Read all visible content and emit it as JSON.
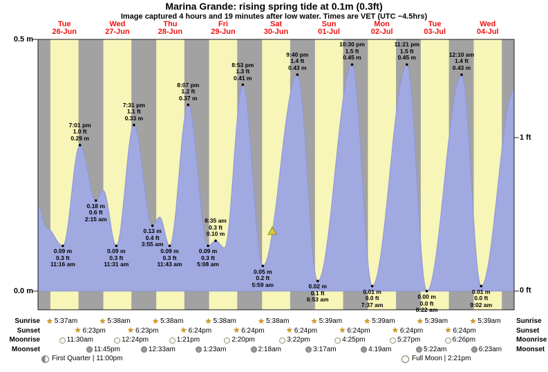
{
  "title": "Marina Grande: rising  spring tide at 0.1m (0.3ft)",
  "subtitle": "Image captured 4 hours and 19 minutes after low water. Times are VET (UTC −4.5hrs)",
  "axis": {
    "left_top": "0.5 m",
    "left_bottom": "0.0 m",
    "right_top": "1 ft",
    "right_bottom": "0 ft"
  },
  "days": [
    {
      "dow": "Tue",
      "date": "26-Jun"
    },
    {
      "dow": "Wed",
      "date": "27-Jun"
    },
    {
      "dow": "Thu",
      "date": "28-Jun"
    },
    {
      "dow": "Fri",
      "date": "29-Jun"
    },
    {
      "dow": "Sat",
      "date": "30-Jun"
    },
    {
      "dow": "Sun",
      "date": "01-Jul"
    },
    {
      "dow": "Mon",
      "date": "02-Jul"
    },
    {
      "dow": "Tue",
      "date": "03-Jul"
    },
    {
      "dow": "Wed",
      "date": "04-Jul"
    }
  ],
  "chart_data": {
    "type": "area",
    "title": "Marina Grande tide height",
    "x_axis": "hours from Tue 26-Jun 00:00 (chart spans 9 days, 0-216 h)",
    "y_unit": "m",
    "ylim_m": [
      0,
      0.5
    ],
    "y_ticks_left_m": [
      0.0,
      0.5
    ],
    "y_ticks_right_ft": [
      0,
      1
    ],
    "grid": false,
    "bands": {
      "meaning": "yellow = daylight, gray = night",
      "sunrise_t": [
        5.62,
        29.63,
        53.63,
        77.63,
        101.63,
        125.65,
        149.65,
        173.65,
        197.65
      ],
      "sunset_t": [
        18.38,
        42.38,
        66.4,
        90.4,
        114.4,
        138.4,
        162.4,
        186.4,
        210.4
      ]
    },
    "extremes": [
      {
        "t": 0.0,
        "h": 0.17
      },
      {
        "t": 4.0,
        "h": 0.125
      },
      {
        "t": 11.27,
        "h": 0.09,
        "kind": "low",
        "lines": [
          "0.09 m",
          "0.3 ft",
          "11:16 am"
        ]
      },
      {
        "t": 19.02,
        "h": 0.29,
        "kind": "high",
        "lines": [
          "7:01 pm",
          "1.0 ft",
          "0.29 m"
        ]
      },
      {
        "t": 26.25,
        "h": 0.18,
        "kind": "low",
        "lines": [
          "0.18 m",
          "0.6 ft",
          "2:15 am"
        ]
      },
      {
        "t": 29.6,
        "h": 0.2
      },
      {
        "t": 35.52,
        "h": 0.09,
        "kind": "low",
        "lines": [
          "0.09 m",
          "0.3 ft",
          "11:31 am"
        ]
      },
      {
        "t": 43.52,
        "h": 0.33,
        "kind": "high",
        "lines": [
          "7:31 pm",
          "1.1 ft",
          "0.33 m"
        ]
      },
      {
        "t": 51.92,
        "h": 0.13,
        "kind": "low",
        "lines": [
          "0.13 m",
          "0.4 ft",
          "3:55 am"
        ]
      },
      {
        "t": 55.2,
        "h": 0.147
      },
      {
        "t": 59.72,
        "h": 0.09,
        "kind": "low",
        "lines": [
          "0.09 m",
          "0.3 ft",
          "11:43 am"
        ]
      },
      {
        "t": 68.12,
        "h": 0.37,
        "kind": "high",
        "lines": [
          "8:07 pm",
          "1.2 ft",
          "0.37 m"
        ]
      },
      {
        "t": 77.13,
        "h": 0.09,
        "kind": "low",
        "lines": [
          "0.09 m",
          "0.3 ft",
          "5:08 am"
        ]
      },
      {
        "t": 80.58,
        "h": 0.1,
        "kind": "high",
        "lines": [
          "8:35 am",
          "0.3 ft",
          "0.10 m"
        ]
      },
      {
        "t": 84.6,
        "h": 0.086
      },
      {
        "t": 92.88,
        "h": 0.41,
        "kind": "high",
        "lines": [
          "8:53 pm",
          "1.3 ft",
          "0.41 m"
        ]
      },
      {
        "t": 101.98,
        "h": 0.05,
        "kind": "low",
        "lines": [
          "0.05 m",
          "0.2 ft",
          "5:59 am"
        ]
      },
      {
        "t": 117.67,
        "h": 0.43,
        "kind": "high",
        "lines": [
          "9:40 pm",
          "1.4 ft",
          "0.43 m"
        ]
      },
      {
        "t": 126.88,
        "h": 0.02,
        "kind": "low",
        "lines": [
          "0.02 m",
          "0.1 ft",
          "6:53 am"
        ]
      },
      {
        "t": 142.5,
        "h": 0.45,
        "kind": "high",
        "lines": [
          "10:30 pm",
          "1.5 ft",
          "0.45 m"
        ]
      },
      {
        "t": 151.62,
        "h": 0.01,
        "kind": "low",
        "lines": [
          "0.01 m",
          "0.0 ft",
          "7:37 am"
        ]
      },
      {
        "t": 167.35,
        "h": 0.45,
        "kind": "high",
        "lines": [
          "11:21 pm",
          "1.5 ft",
          "0.45 m"
        ]
      },
      {
        "t": 176.37,
        "h": 0.0,
        "kind": "low",
        "lines": [
          "0.00 m",
          "0.0 ft",
          "8:22 am"
        ]
      },
      {
        "t": 192.17,
        "h": 0.43,
        "kind": "high",
        "lines": [
          "12:10 am",
          "1.4 ft",
          "0.43 m"
        ]
      },
      {
        "t": 201.03,
        "h": 0.01,
        "kind": "low",
        "lines": [
          "0.01 m",
          "0.0 ft",
          "9:02 am"
        ]
      },
      {
        "t": 216.0,
        "h": 0.4
      }
    ],
    "current_time_marker": {
      "t_hours": 106.3,
      "h_m": 0.118,
      "icon": "current-time-triangle-icon"
    }
  },
  "sun_moon": {
    "rows": [
      {
        "label": "Sunrise",
        "icon": "sun-star-icon",
        "entries": [
          {
            "time": "5:37am",
            "t": 5.62
          },
          {
            "time": "5:38am",
            "t": 29.63
          },
          {
            "time": "5:38am",
            "t": 53.63
          },
          {
            "time": "5:38am",
            "t": 77.63
          },
          {
            "time": "5:38am",
            "t": 101.63
          },
          {
            "time": "5:39am",
            "t": 125.65
          },
          {
            "time": "5:39am",
            "t": 149.65
          },
          {
            "time": "5:39am",
            "t": 173.65
          },
          {
            "time": "5:39am",
            "t": 197.65
          }
        ]
      },
      {
        "label": "Sunset",
        "icon": "sun-star-icon",
        "entries": [
          {
            "time": "6:23pm",
            "t": 18.38
          },
          {
            "time": "6:23pm",
            "t": 42.38
          },
          {
            "time": "6:24pm",
            "t": 66.4
          },
          {
            "time": "6:24pm",
            "t": 90.4
          },
          {
            "time": "6:24pm",
            "t": 114.4
          },
          {
            "time": "6:24pm",
            "t": 138.4
          },
          {
            "time": "6:24pm",
            "t": 162.4
          },
          {
            "time": "6:24pm",
            "t": 186.4
          }
        ]
      },
      {
        "label": "Moonrise",
        "icon": "moonrise-circle-icon",
        "entries": [
          {
            "time": "11:30am",
            "t": 11.5
          },
          {
            "time": "12:24pm",
            "t": 36.4
          },
          {
            "time": "1:21pm",
            "t": 61.35
          },
          {
            "time": "2:20pm",
            "t": 86.33
          },
          {
            "time": "3:22pm",
            "t": 111.37
          },
          {
            "time": "4:25pm",
            "t": 136.42
          },
          {
            "time": "5:27pm",
            "t": 161.45
          },
          {
            "time": "6:26pm",
            "t": 186.43
          }
        ]
      },
      {
        "label": "Moonset",
        "icon": "moonset-circle-icon",
        "entries": [
          {
            "time": "11:45pm",
            "t": 23.75
          },
          {
            "time": "12:33am",
            "t": 48.55
          },
          {
            "time": "1:23am",
            "t": 73.38
          },
          {
            "time": "2:18am",
            "t": 98.3
          },
          {
            "time": "3:17am",
            "t": 123.28
          },
          {
            "time": "4:19am",
            "t": 148.32
          },
          {
            "time": "5:22am",
            "t": 173.37
          },
          {
            "time": "6:23am",
            "t": 198.38
          }
        ]
      }
    ],
    "phases": [
      {
        "label": "First Quarter | 11:00pm",
        "icon": "first-quarter-moon-icon"
      },
      {
        "label": "Full Moon | 2:21pm",
        "icon": "full-moon-icon"
      }
    ]
  },
  "colors": {
    "day_band": "#f7f5b8",
    "night_band": "#a2a2a2",
    "water": "#a0a9e0",
    "water_edge": "#8d96d6",
    "date_red": "#ee1111",
    "marker_yellow": "#ddc93c",
    "sun_star": "#d29b27",
    "moon_light": "#fdf8e6",
    "moon_dark": "#9a9a9a"
  }
}
